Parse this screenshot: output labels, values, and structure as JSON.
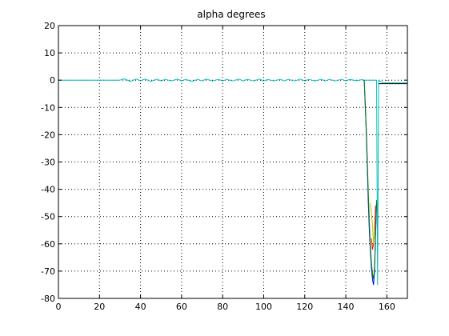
{
  "chart_data": {
    "type": "line",
    "title": "alpha degrees",
    "xlabel": "",
    "ylabel": "",
    "xlim": [
      0,
      170
    ],
    "ylim": [
      -80,
      20
    ],
    "grid": true,
    "legend": "none",
    "x_ticks": [
      0,
      20,
      40,
      60,
      80,
      100,
      120,
      140,
      160
    ],
    "y_ticks": [
      20,
      10,
      0,
      -10,
      -20,
      -30,
      -40,
      -50,
      -60,
      -70,
      -80
    ],
    "series": [
      {
        "color": "#00bfbf",
        "x": [
          0,
          30,
          32,
          35,
          38,
          40,
          42,
          45,
          48,
          50,
          52,
          55,
          58,
          60,
          62,
          65,
          68,
          70,
          72,
          75,
          78,
          80,
          82,
          85,
          88,
          90,
          92,
          95,
          98,
          100,
          102,
          105,
          108,
          110,
          112,
          115,
          118,
          120,
          122,
          125,
          128,
          130,
          132,
          135,
          138,
          140,
          142,
          145,
          148,
          149,
          149.5,
          150.5,
          151,
          152,
          153,
          154,
          155,
          155.5,
          156,
          158,
          160,
          165,
          170
        ],
        "y": [
          0,
          0,
          0.5,
          -0.4,
          0.4,
          -0.3,
          0.4,
          -0.4,
          0.4,
          -0.3,
          0.3,
          -0.3,
          0.4,
          -0.3,
          0.3,
          -0.4,
          0.3,
          -0.3,
          0.4,
          -0.3,
          0.3,
          -0.3,
          0.3,
          -0.3,
          0.4,
          -0.3,
          0.3,
          -0.3,
          0.4,
          -0.3,
          0.3,
          -0.3,
          0.3,
          -0.3,
          0.3,
          -0.3,
          0.4,
          -0.3,
          0.3,
          -0.3,
          0.3,
          -0.3,
          0.3,
          -0.3,
          0.3,
          -0.3,
          0.3,
          -0.2,
          0.2,
          0,
          0,
          0,
          0,
          0,
          0,
          0,
          0,
          -75,
          0,
          -1,
          -1,
          -1,
          -1
        ]
      },
      {
        "color": "#0000ff",
        "x": [
          149,
          149.5,
          150,
          150.5,
          151,
          151.5,
          152,
          152.5,
          153,
          153.5,
          154,
          154.5,
          155
        ],
        "y": [
          0,
          -9,
          -20,
          -33,
          -46,
          -56,
          -63,
          -69,
          -73,
          -75,
          -70,
          -58,
          -45
        ]
      },
      {
        "color": "#008000",
        "x": [
          149,
          149.5,
          150,
          150.5,
          151,
          151.5,
          152,
          152.5,
          153,
          153.5,
          154,
          154.5,
          155
        ],
        "y": [
          0,
          -10,
          -18,
          -30,
          -42,
          -53,
          -61,
          -67,
          -71,
          -73,
          -68,
          -56,
          -44
        ]
      },
      {
        "color": "#ff0000",
        "x": [
          152.5,
          153,
          153.5,
          154,
          154.5
        ],
        "y": [
          -58,
          -62,
          -60,
          -55,
          -46
        ]
      },
      {
        "color": "#000000",
        "x": [
          156,
          157,
          160,
          165,
          170
        ],
        "y": [
          -1.3,
          -1.3,
          -1.3,
          -1.3,
          -1.3
        ]
      },
      {
        "color": "#bfbf00",
        "x": [
          152,
          153,
          153.5,
          154
        ],
        "y": [
          -45,
          -53,
          -60,
          -55
        ]
      }
    ]
  }
}
